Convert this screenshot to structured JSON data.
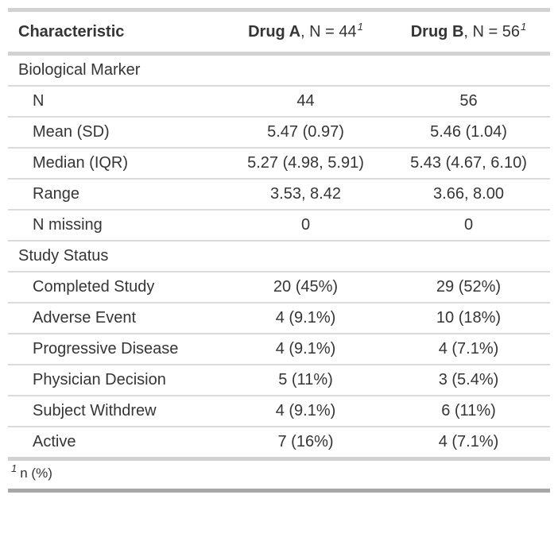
{
  "chart_data": {
    "type": "table",
    "header": {
      "characteristic": "Characteristic",
      "col_a": {
        "drug": "Drug A",
        "suffix": ", N = 44",
        "footnote_mark": "1"
      },
      "col_b": {
        "drug": "Drug B",
        "suffix": ", N = 56",
        "footnote_mark": "1"
      }
    },
    "rows": [
      {
        "label": "Biological Marker",
        "level": "group",
        "drug_a": "",
        "drug_b": ""
      },
      {
        "label": "N",
        "level": "item",
        "drug_a": "44",
        "drug_b": "56"
      },
      {
        "label": "Mean (SD)",
        "level": "item",
        "drug_a": "5.47 (0.97)",
        "drug_b": "5.46 (1.04)"
      },
      {
        "label": "Median (IQR)",
        "level": "item",
        "drug_a": "5.27 (4.98, 5.91)",
        "drug_b": "5.43 (4.67, 6.10)"
      },
      {
        "label": "Range",
        "level": "item",
        "drug_a": "3.53, 8.42",
        "drug_b": "3.66, 8.00"
      },
      {
        "label": "N missing",
        "level": "item",
        "drug_a": "0",
        "drug_b": "0"
      },
      {
        "label": "Study Status",
        "level": "group",
        "drug_a": "",
        "drug_b": ""
      },
      {
        "label": "Completed Study",
        "level": "item",
        "drug_a": "20 (45%)",
        "drug_b": "29 (52%)"
      },
      {
        "label": "Adverse Event",
        "level": "item",
        "drug_a": "4 (9.1%)",
        "drug_b": "10 (18%)"
      },
      {
        "label": "Progressive Disease",
        "level": "item",
        "drug_a": "4 (9.1%)",
        "drug_b": "4 (7.1%)"
      },
      {
        "label": "Physician Decision",
        "level": "item",
        "drug_a": "5 (11%)",
        "drug_b": "3 (5.4%)"
      },
      {
        "label": "Subject Withdrew",
        "level": "item",
        "drug_a": "4 (9.1%)",
        "drug_b": "6 (11%)"
      },
      {
        "label": "Active",
        "level": "item",
        "drug_a": "7 (16%)",
        "drug_b": "4 (7.1%)"
      }
    ],
    "footnote": {
      "mark": "1",
      "text": "n (%)"
    },
    "colors": {
      "text": "#353535",
      "rule_light": "#d2d2d2",
      "rule_row": "#dbdbdb",
      "rule_bottom": "#a7a7a7",
      "background": "#ffffff"
    }
  }
}
